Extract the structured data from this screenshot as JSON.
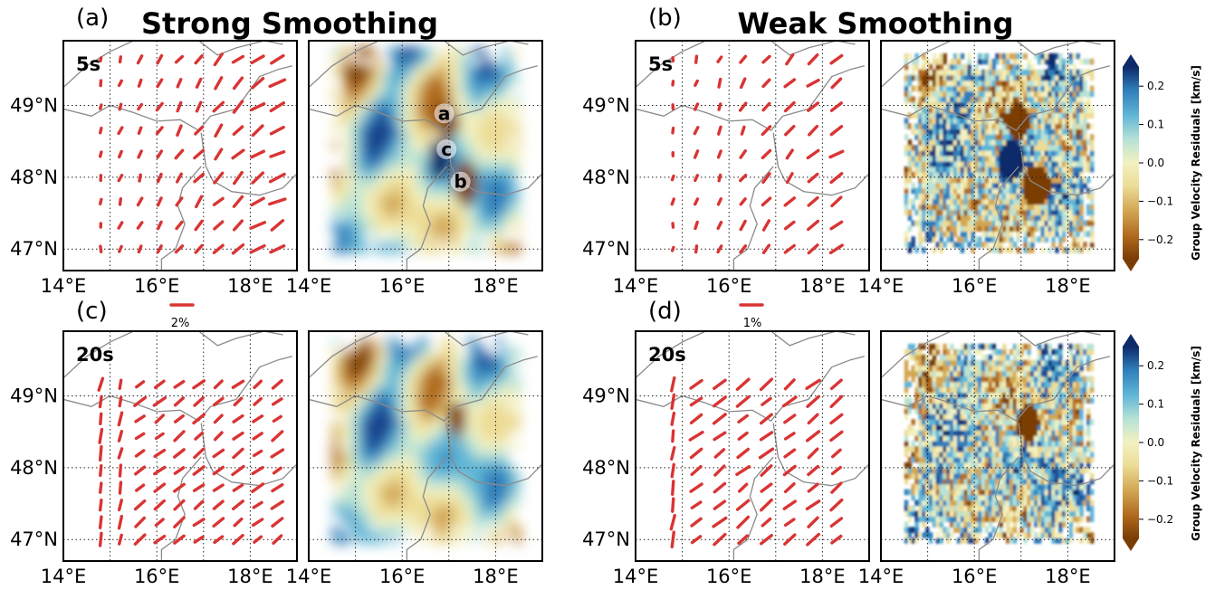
{
  "columns": [
    {
      "title": "Strong Smoothing",
      "scale_label": "2%"
    },
    {
      "title": "Weak Smoothing",
      "scale_label": "1%"
    }
  ],
  "panels": [
    {
      "letter": "(a)",
      "period": "5s"
    },
    {
      "letter": "(b)",
      "period": "5s"
    },
    {
      "letter": "(c)",
      "period": "20s"
    },
    {
      "letter": "(d)",
      "period": "20s"
    }
  ],
  "map_extent": {
    "lon": [
      14.0,
      19.0
    ],
    "lat": [
      46.7,
      49.9
    ]
  },
  "lat_ticks": [
    {
      "value": 49,
      "label": "49°N"
    },
    {
      "value": 48,
      "label": "48°N"
    },
    {
      "value": 47,
      "label": "47°N"
    }
  ],
  "lon_ticks": [
    {
      "value": 14,
      "label": "14°E"
    },
    {
      "value": 16,
      "label": "16°E"
    },
    {
      "value": 18,
      "label": "18°E"
    }
  ],
  "gridlines": {
    "lon": [
      15,
      16,
      17,
      18
    ],
    "lat": [
      47,
      48,
      49
    ]
  },
  "colorbar": {
    "label": "Group Velocity Residuals [km/s]",
    "ticks": [
      "0.2",
      "0.1",
      "0.0",
      "−0.1",
      "−0.2"
    ],
    "range": [
      -0.25,
      0.25
    ],
    "extend": "both",
    "colormap": [
      "#7b3d06",
      "#b06a1e",
      "#d2a653",
      "#ecdc96",
      "#f3f1c0",
      "#b8e2d6",
      "#5fb5d6",
      "#2e7eba",
      "#1c4a93",
      "#0e2a6a"
    ]
  },
  "features": [
    {
      "label": "a",
      "lon": 16.9,
      "lat": 48.8
    },
    {
      "label": "c",
      "lon": 16.95,
      "lat": 48.3
    },
    {
      "label": "b",
      "lon": 17.25,
      "lat": 47.85
    }
  ],
  "colors": {
    "anisotropy_bar": "#d93434",
    "border": "#8a8a8a"
  }
}
